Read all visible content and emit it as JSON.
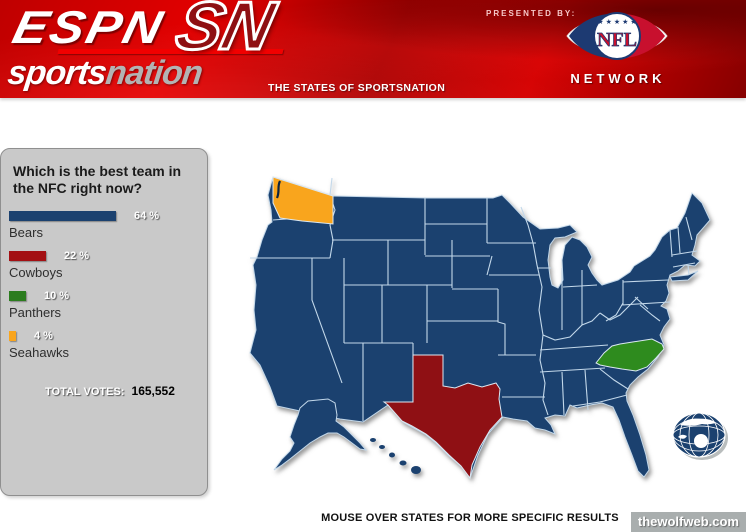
{
  "header": {
    "espn": "ESPN",
    "sn": "SN",
    "brand": {
      "sports": "sports",
      "nation": "nation"
    },
    "tagline": "THE STATES OF SPORTSNATION",
    "presented_by": "PRESENTED BY:",
    "nfl": {
      "shield_text": "NFL",
      "network_text": "NETWORK",
      "stars": "★ ★ ★ ★ ★",
      "red": "#c8102e",
      "navy": "#1d3a72"
    },
    "banner_red": "#c40000"
  },
  "poll": {
    "question_line1": "Which is the best team in",
    "question_line2": "the NFC right now?",
    "options": [
      {
        "team": "Bears",
        "percent": 64,
        "percent_label": "64 %",
        "color": "#1b416f"
      },
      {
        "team": "Cowboys",
        "percent": 22,
        "percent_label": "22 %",
        "color": "#a31013"
      },
      {
        "team": "Panthers",
        "percent": 10,
        "percent_label": "10 %",
        "color": "#2b7c1e"
      },
      {
        "team": "Seahawks",
        "percent": 4,
        "percent_label": "4 %",
        "color": "#f9a51d"
      }
    ],
    "total_votes_label": "TOTAL VOTES:",
    "total_votes_value": "165,552"
  },
  "map": {
    "default_fill": "#1b416f",
    "border_color": "#c3d8ea",
    "highlights": {
      "washington": {
        "team": "Seahawks",
        "color": "#f9a51d"
      },
      "texas": {
        "team": "Cowboys",
        "color": "#8f1014"
      },
      "north_carolina": {
        "team": "Panthers",
        "color": "#2e8b1e"
      }
    },
    "footnote": "MOUSE OVER STATES FOR MORE SPECIFIC RESULTS"
  },
  "watermark": "thewolfweb.com"
}
